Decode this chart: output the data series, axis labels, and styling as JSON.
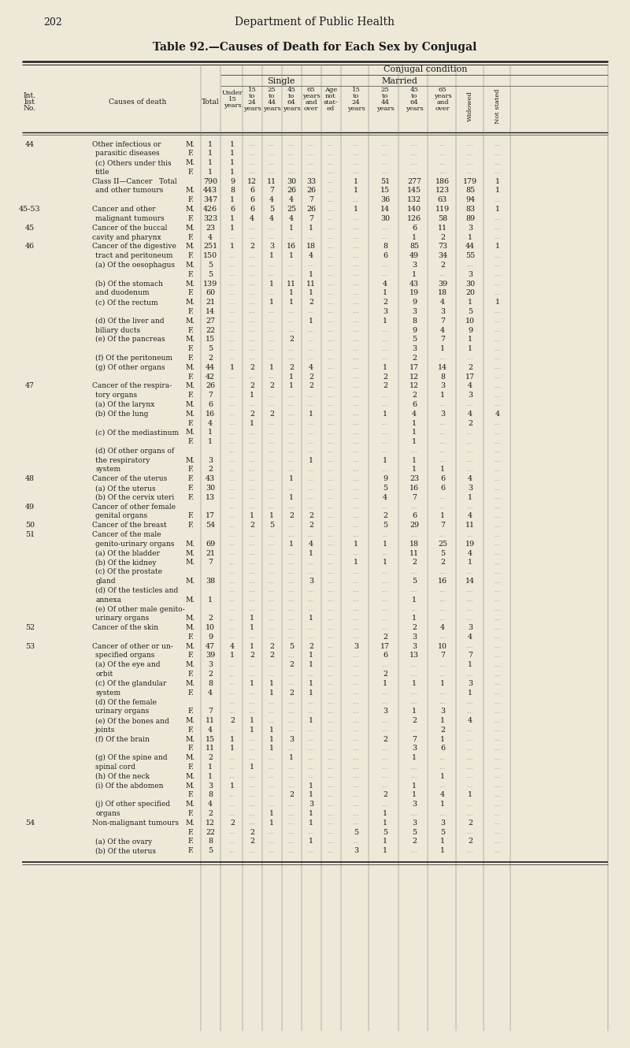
{
  "page_num": "202",
  "dept_title": "Department of Public Health",
  "table_title": "Table 92.—Causes of Death for Each Sex by Conjugal",
  "bg_color": "#ede8d8",
  "text_color": "#1a1a1a",
  "rows": [
    [
      "44",
      "Other infectious or",
      "M.",
      "1",
      "1",
      "",
      "",
      "",
      "",
      "",
      "",
      "",
      "",
      "",
      "",
      ""
    ],
    [
      "",
      "parasitic diseases",
      "F.",
      "1",
      "1",
      "",
      "",
      "",
      "",
      "",
      "",
      "",
      "",
      "",
      "",
      ""
    ],
    [
      "",
      "(c) Others under this",
      "M.",
      "1",
      "1",
      "",
      "",
      "",
      "",
      "",
      "",
      "",
      "",
      "",
      "",
      ""
    ],
    [
      "",
      "title",
      "F.",
      "1",
      "1",
      "",
      "",
      "",
      "",
      "",
      "",
      "",
      "",
      "",
      "",
      ""
    ],
    [
      "",
      "Class II—Cancer   Total",
      "",
      "790",
      "9",
      "12",
      "11",
      "30",
      "33",
      "",
      "1",
      "51",
      "277",
      "186",
      "179",
      "1"
    ],
    [
      "",
      "and other tumours",
      "M.",
      "443",
      "8",
      "6",
      "7",
      "26",
      "26",
      "",
      "1",
      "15",
      "145",
      "123",
      "85",
      "1"
    ],
    [
      "",
      "",
      "F.",
      "347",
      "1",
      "6",
      "4",
      "4",
      "7",
      "",
      "",
      "36",
      "132",
      "63",
      "94",
      ""
    ],
    [
      "45-53",
      "Cancer and other",
      "M.",
      "426",
      "6",
      "6",
      "5",
      "25",
      "26",
      "",
      "1",
      "14",
      "140",
      "119",
      "83",
      "1"
    ],
    [
      "",
      "malignant tumours",
      "F.",
      "323",
      "1",
      "4",
      "4",
      "4",
      "7",
      "",
      "",
      "30",
      "126",
      "58",
      "89",
      ""
    ],
    [
      "45",
      "Cancer of the buccal",
      "M.",
      "23",
      "1",
      "",
      "",
      "1",
      "1",
      "",
      "",
      "",
      "6",
      "11",
      "3",
      ""
    ],
    [
      "",
      "cavity and pharynx",
      "F.",
      "4",
      "",
      "",
      "",
      "",
      "",
      "",
      "",
      "",
      "1",
      "2",
      "1",
      ""
    ],
    [
      "46",
      "Cancer of the digestive",
      "M.",
      "251",
      "1",
      "2",
      "3",
      "16",
      "18",
      "",
      "",
      "8",
      "85",
      "73",
      "44",
      "1"
    ],
    [
      "",
      "tract and peritoneum",
      "F.",
      "150",
      "",
      "",
      "1",
      "1",
      "4",
      "",
      "",
      "6",
      "49",
      "34",
      "55",
      ""
    ],
    [
      "",
      "(a) Of the oesophagus",
      "M.",
      "5",
      "",
      "",
      "",
      "",
      "",
      "",
      "",
      "",
      "3",
      "2",
      "",
      ""
    ],
    [
      "",
      "",
      "F.",
      "5",
      "",
      "",
      "",
      "",
      "1",
      "",
      "",
      "",
      "1",
      "",
      "3",
      ""
    ],
    [
      "",
      "(b) Of the stomach",
      "M.",
      "139",
      "",
      "",
      "1",
      "11",
      "11",
      "",
      "",
      "4",
      "43",
      "39",
      "30",
      ""
    ],
    [
      "",
      "and duodenum",
      "F.",
      "60",
      "",
      "",
      "",
      "1",
      "1",
      "",
      "",
      "1",
      "19",
      "18",
      "20",
      ""
    ],
    [
      "",
      "(c) Of the rectum",
      "M.",
      "21",
      "",
      "",
      "1",
      "1",
      "2",
      "",
      "",
      "2",
      "9",
      "4",
      "1",
      "1"
    ],
    [
      "",
      "",
      "F.",
      "14",
      "",
      "",
      "",
      "",
      "",
      "",
      "",
      "3",
      "3",
      "3",
      "5",
      ""
    ],
    [
      "",
      "(d) Of the liver and",
      "M.",
      "27",
      "",
      "",
      "",
      "",
      "1",
      "",
      "",
      "1",
      "8",
      "7",
      "10",
      ""
    ],
    [
      "",
      "biliary ducts",
      "F.",
      "22",
      "",
      "",
      "",
      "",
      "",
      "",
      "",
      "",
      "9",
      "4",
      "9",
      ""
    ],
    [
      "",
      "(e) Of the pancreas",
      "M.",
      "15",
      "",
      "",
      "",
      "2",
      "",
      "",
      "",
      "",
      "5",
      "7",
      "1",
      ""
    ],
    [
      "",
      "",
      "F.",
      "5",
      "",
      "",
      "",
      "",
      "",
      "",
      "",
      "",
      "3",
      "1",
      "1",
      ""
    ],
    [
      "",
      "(f) Of the peritoneum",
      "F.",
      "2",
      "",
      "",
      "",
      "",
      "",
      "",
      "",
      "",
      "2",
      "",
      "",
      ""
    ],
    [
      "",
      "(g) Of other organs",
      "M.",
      "44",
      "1",
      "2",
      "1",
      "2",
      "4",
      "",
      "",
      "1",
      "17",
      "14",
      "2",
      ""
    ],
    [
      "",
      "",
      "F.",
      "42",
      "",
      "",
      "",
      "1",
      "2",
      "",
      "",
      "2",
      "12",
      "8",
      "17",
      ""
    ],
    [
      "47",
      "Cancer of the respira-",
      "M.",
      "26",
      "",
      "2",
      "2",
      "1",
      "2",
      "",
      "",
      "2",
      "12",
      "3",
      "4",
      ""
    ],
    [
      "",
      "tory organs",
      "F.",
      "7",
      "",
      "1",
      "",
      "",
      "",
      "",
      "",
      "",
      "2",
      "1",
      "3",
      ""
    ],
    [
      "",
      "(a) Of the larynx",
      "M.",
      "6",
      "",
      "",
      "",
      "",
      "",
      "",
      "",
      "",
      "6",
      "",
      "",
      ""
    ],
    [
      "",
      "(b) Of the lung",
      "M.",
      "16",
      "",
      "2",
      "2",
      "",
      "1",
      "",
      "",
      "1",
      "4",
      "3",
      "4",
      "4"
    ],
    [
      "",
      "",
      "F.",
      "4",
      "",
      "1",
      "",
      "",
      "",
      "",
      "",
      "",
      "1",
      "",
      "2",
      ""
    ],
    [
      "",
      "(c) Of the mediastinum",
      "M.",
      "1",
      "",
      "",
      "",
      "",
      "",
      "",
      "",
      "",
      "1",
      "",
      "",
      ""
    ],
    [
      "",
      "",
      "F.",
      "1",
      "",
      "",
      "",
      "",
      "",
      "",
      "",
      "",
      "1",
      "",
      "",
      ""
    ],
    [
      "",
      "(d) Of other organs of",
      "",
      "",
      "",
      "",
      "",
      "",
      "",
      "",
      "",
      "",
      "",
      "",
      "",
      ""
    ],
    [
      "",
      "the respiratory",
      "M.",
      "3",
      "",
      "",
      "",
      "",
      "1",
      "",
      "",
      "1",
      "1",
      "",
      "",
      ""
    ],
    [
      "",
      "system",
      "F.",
      "2",
      "",
      "",
      "",
      "",
      "",
      "",
      "",
      "",
      "1",
      "1",
      "",
      ""
    ],
    [
      "48",
      "Cancer of the uterus",
      "F.",
      "43",
      "",
      "",
      "",
      "1",
      "",
      "",
      "",
      "9",
      "23",
      "6",
      "4",
      ""
    ],
    [
      "",
      "(a) Of the uterus",
      "F.",
      "30",
      "",
      "",
      "",
      "",
      "",
      "",
      "",
      "5",
      "16",
      "6",
      "3",
      ""
    ],
    [
      "",
      "(b) Of the cervix uteri",
      "F.",
      "13",
      "",
      "",
      "",
      "1",
      "",
      "",
      "",
      "4",
      "7",
      "",
      "1",
      ""
    ],
    [
      "49",
      "Cancer of other female",
      "",
      "",
      "",
      "",
      "",
      "",
      "",
      "",
      "",
      "",
      "",
      "",
      "",
      ""
    ],
    [
      "",
      "genital organs",
      "F.",
      "17",
      "",
      "1",
      "1",
      "2",
      "2",
      "",
      "",
      "2",
      "6",
      "1",
      "4",
      ""
    ],
    [
      "50",
      "Cancer of the breast",
      "F.",
      "54",
      "",
      "2",
      "5",
      "",
      "2",
      "",
      "",
      "5",
      "29",
      "7",
      "11",
      ""
    ],
    [
      "51",
      "Cancer of the male",
      "",
      "",
      "",
      "",
      "",
      "",
      "",
      "",
      "",
      "",
      "",
      "",
      "",
      ""
    ],
    [
      "",
      "genito-urinary organs",
      "M.",
      "69",
      "",
      "",
      "",
      "1",
      "4",
      "",
      "1",
      "1",
      "18",
      "25",
      "19",
      ""
    ],
    [
      "",
      "(a) Of the bladder",
      "M.",
      "21",
      "",
      "",
      "",
      "",
      "1",
      "",
      "",
      "",
      "11",
      "5",
      "4",
      ""
    ],
    [
      "",
      "(b) Of the kidney",
      "M.",
      "7",
      "",
      "",
      "",
      "",
      "",
      "",
      "1",
      "1",
      "2",
      "2",
      "1",
      ""
    ],
    [
      "",
      "(c) Of the prostate",
      "",
      "",
      "",
      "",
      "",
      "",
      "",
      "",
      "",
      "",
      "",
      "",
      "",
      ""
    ],
    [
      "",
      "gland",
      "M.",
      "38",
      "",
      "",
      "",
      "",
      "3",
      "",
      "",
      "",
      "5",
      "16",
      "14",
      ""
    ],
    [
      "",
      "(d) Of the testicles and",
      "",
      "",
      "",
      "",
      "",
      "",
      "",
      "",
      "",
      "",
      "",
      "",
      "",
      ""
    ],
    [
      "",
      "annexa",
      "M.",
      "1",
      "",
      "",
      "",
      "",
      "",
      "",
      "",
      "",
      "1",
      "",
      "",
      ""
    ],
    [
      "",
      "(e) Of other male genito-",
      "",
      "",
      "",
      "",
      "",
      "",
      "",
      "",
      "",
      "",
      "",
      "",
      "",
      ""
    ],
    [
      "",
      "urinary organs",
      "M.",
      "2",
      "",
      "1",
      "",
      "",
      "1",
      "",
      "",
      "",
      "1",
      "",
      "",
      ""
    ],
    [
      "52",
      "Cancer of the skin",
      "M.",
      "10",
      "",
      "1",
      "",
      "",
      "",
      "",
      "",
      "",
      "2",
      "4",
      "3",
      ""
    ],
    [
      "",
      "",
      "F.",
      "9",
      "",
      "",
      "",
      "",
      "",
      "",
      "",
      "2",
      "3",
      "",
      "4",
      ""
    ],
    [
      "53",
      "Cancer of other or un-",
      "M.",
      "47",
      "4",
      "1",
      "2",
      "5",
      "2",
      "",
      "3",
      "17",
      "3",
      "10",
      "",
      ""
    ],
    [
      "",
      "specified organs",
      "F.",
      "39",
      "1",
      "2",
      "2",
      "",
      "1",
      "",
      "",
      "6",
      "13",
      "7",
      "7",
      ""
    ],
    [
      "",
      "(a) Of the eye and",
      "M.",
      "3",
      "",
      "",
      "",
      "2",
      "1",
      "",
      "",
      "",
      "",
      "",
      "1",
      ""
    ],
    [
      "",
      "orbit",
      "F.",
      "2",
      "",
      "",
      "",
      "",
      "",
      "",
      "",
      "2",
      "",
      "",
      "",
      ""
    ],
    [
      "",
      "(c) Of the glandular",
      "M.",
      "8",
      "",
      "1",
      "1",
      "",
      "1",
      "",
      "",
      "1",
      "1",
      "1",
      "3",
      ""
    ],
    [
      "",
      "system",
      "F.",
      "4",
      "",
      "",
      "1",
      "2",
      "1",
      "",
      "",
      "",
      "",
      "",
      "1",
      ""
    ],
    [
      "",
      "(d) Of the female",
      "",
      "",
      "",
      "",
      "",
      "",
      "",
      "",
      "",
      "",
      "",
      "",
      "",
      ""
    ],
    [
      "",
      "urinary organs",
      "F.",
      "7",
      "",
      "",
      "",
      "",
      "",
      "",
      "",
      "3",
      "1",
      "3",
      "",
      ""
    ],
    [
      "",
      "(e) Of the bones and",
      "M.",
      "11",
      "2",
      "1",
      "",
      "",
      "1",
      "",
      "",
      "",
      "2",
      "1",
      "4",
      ""
    ],
    [
      "",
      "joints",
      "F.",
      "4",
      "",
      "1",
      "1",
      "",
      "",
      "",
      "",
      "",
      "",
      "2",
      "",
      ""
    ],
    [
      "",
      "(f) Of the brain",
      "M.",
      "15",
      "1",
      "",
      "1",
      "3",
      "",
      "",
      "",
      "2",
      "7",
      "1",
      "",
      ""
    ],
    [
      "",
      "",
      "F.",
      "11",
      "1",
      "",
      "1",
      "",
      "",
      "",
      "",
      "",
      "3",
      "6",
      "",
      ""
    ],
    [
      "",
      "(g) Of the spine and",
      "M.",
      "2",
      "",
      "",
      "",
      "1",
      "",
      "",
      "",
      "",
      "1",
      "",
      "",
      ""
    ],
    [
      "",
      "spinal cord",
      "F.",
      "1",
      "",
      "1",
      "",
      "",
      "",
      "",
      "",
      "",
      "",
      "",
      "",
      ""
    ],
    [
      "",
      "(h) Of the neck",
      "M.",
      "1",
      "",
      "",
      "",
      "",
      "",
      "",
      "",
      "",
      "",
      "1",
      "",
      ""
    ],
    [
      "",
      "(i) Of the abdomen",
      "M.",
      "3",
      "1",
      "",
      "",
      "",
      "1",
      "",
      "",
      "",
      "1",
      "",
      "",
      ""
    ],
    [
      "",
      "",
      "F.",
      "8",
      "",
      "",
      "",
      "2",
      "1",
      "",
      "",
      "2",
      "1",
      "4",
      "1",
      ""
    ],
    [
      "",
      "(j) Of other specified",
      "M.",
      "4",
      "",
      "",
      "",
      "",
      "3",
      "",
      "",
      "",
      "3",
      "1",
      "",
      ""
    ],
    [
      "",
      "organs",
      "F.",
      "2",
      "",
      "",
      "1",
      "",
      "1",
      "",
      "",
      "1",
      "",
      "",
      "",
      ""
    ],
    [
      "54",
      "Non-malignant tumours",
      "M.",
      "12",
      "2",
      "",
      "1",
      "",
      "1",
      "",
      "",
      "1",
      "3",
      "3",
      "2",
      ""
    ],
    [
      "",
      "",
      "F.",
      "22",
      "",
      "2",
      "",
      "",
      "",
      "",
      "5",
      "5",
      "5",
      "5",
      "",
      ""
    ],
    [
      "",
      "(a) Of the ovary",
      "F.",
      "8",
      "",
      "2",
      "",
      "",
      "1",
      "",
      "",
      "1",
      "2",
      "1",
      "2",
      ""
    ],
    [
      "",
      "(b) Of the uterus",
      "F.",
      "5",
      "",
      "",
      "",
      "",
      "",
      "",
      "3",
      "1",
      "",
      "1",
      "",
      ""
    ]
  ]
}
